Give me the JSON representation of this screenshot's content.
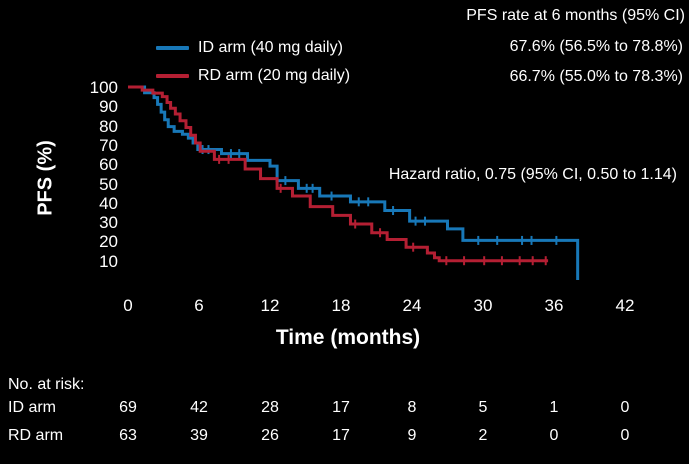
{
  "header": {
    "rate_title": "PFS rate at 6 months (95% CI)",
    "hazard_text": "Hazard ratio, 0.75 (95% CI, 0.50 to 1.14)"
  },
  "legend": [
    {
      "label": "ID arm (40 mg daily)",
      "rate": "67.6% (56.5% to 78.8%)",
      "color": "#1878b8"
    },
    {
      "label": "RD arm (20 mg daily)",
      "rate": "66.7% (55.0% to 78.3%)",
      "color": "#b41f33"
    }
  ],
  "axes": {
    "y_label": "PFS (%)",
    "x_label": "Time (months)",
    "y_ticks": [
      100,
      90,
      80,
      70,
      60,
      50,
      40,
      30,
      20,
      10
    ],
    "x_ticks": [
      0,
      6,
      12,
      18,
      24,
      30,
      36,
      42
    ]
  },
  "risk_table": {
    "title": "No. at risk:",
    "rows": [
      {
        "label": "ID arm",
        "counts": [
          69,
          42,
          28,
          17,
          8,
          5,
          1,
          0
        ]
      },
      {
        "label": "RD arm",
        "counts": [
          63,
          39,
          26,
          17,
          9,
          2,
          0,
          0
        ]
      }
    ]
  },
  "chart_data": {
    "type": "line",
    "subtype": "kaplan-meier-step",
    "title": "PFS rate at 6 months (95% CI)",
    "xlabel": "Time (months)",
    "ylabel": "PFS (%)",
    "xlim": [
      0,
      42
    ],
    "ylim": [
      0,
      100
    ],
    "grid": false,
    "legend_position": "top-left",
    "annotations": [
      "Hazard ratio, 0.75 (95% CI, 0.50 to 1.14)",
      "ID arm 6-month PFS 67.6% (56.5% to 78.8%)",
      "RD arm 6-month PFS 66.7% (55.0% to 78.3%)"
    ],
    "series": [
      {
        "name": "ID arm (40 mg daily)",
        "color": "#1878b8",
        "steps": [
          [
            0,
            100
          ],
          [
            1.4,
            97
          ],
          [
            2.2,
            94.5
          ],
          [
            2.5,
            91
          ],
          [
            2.8,
            87
          ],
          [
            3.1,
            83
          ],
          [
            3.4,
            79.5
          ],
          [
            3.9,
            77
          ],
          [
            4.6,
            75.5
          ],
          [
            5.1,
            73.5
          ],
          [
            5.5,
            71
          ],
          [
            5.9,
            67.6
          ],
          [
            7.9,
            65.5
          ],
          [
            10.1,
            62
          ],
          [
            12.0,
            59
          ],
          [
            12.6,
            51.5
          ],
          [
            14.4,
            47.5
          ],
          [
            16.2,
            43.5
          ],
          [
            18.8,
            40.5
          ],
          [
            21.7,
            36
          ],
          [
            23.8,
            30.5
          ],
          [
            27.0,
            26.5
          ],
          [
            28.3,
            20.5
          ],
          [
            38.0,
            0
          ]
        ],
        "censor_times": [
          6.3,
          6.8,
          8.7,
          9.4,
          13.3,
          15.1,
          15.6,
          17.2,
          19.5,
          20.3,
          22.4,
          24.3,
          25.1,
          29.6,
          31.2,
          33.3,
          34.1,
          36.2
        ]
      },
      {
        "name": "RD arm (20 mg daily)",
        "color": "#b41f33",
        "steps": [
          [
            0,
            100
          ],
          [
            1.2,
            98.4
          ],
          [
            2.1,
            96.8
          ],
          [
            2.9,
            95
          ],
          [
            3.3,
            92
          ],
          [
            3.6,
            89
          ],
          [
            4.0,
            86
          ],
          [
            4.4,
            82.5
          ],
          [
            4.9,
            79
          ],
          [
            5.3,
            75
          ],
          [
            5.7,
            71
          ],
          [
            6.1,
            66.7
          ],
          [
            7.3,
            62.5
          ],
          [
            9.9,
            57.5
          ],
          [
            11.2,
            52.5
          ],
          [
            12.6,
            47.5
          ],
          [
            13.9,
            43.5
          ],
          [
            15.4,
            38
          ],
          [
            17.3,
            33.5
          ],
          [
            18.8,
            29
          ],
          [
            20.6,
            24.5
          ],
          [
            21.9,
            21
          ],
          [
            23.5,
            17
          ],
          [
            25.3,
            14
          ],
          [
            25.9,
            11.5
          ],
          [
            26.3,
            10
          ]
        ],
        "end_time": 35.5,
        "censor_times": [
          7.7,
          8.5,
          12.9,
          19.2,
          21.3,
          24.1,
          26.9,
          28.4,
          30.1,
          31.6,
          33.1,
          34.2,
          35.3
        ]
      }
    ]
  }
}
